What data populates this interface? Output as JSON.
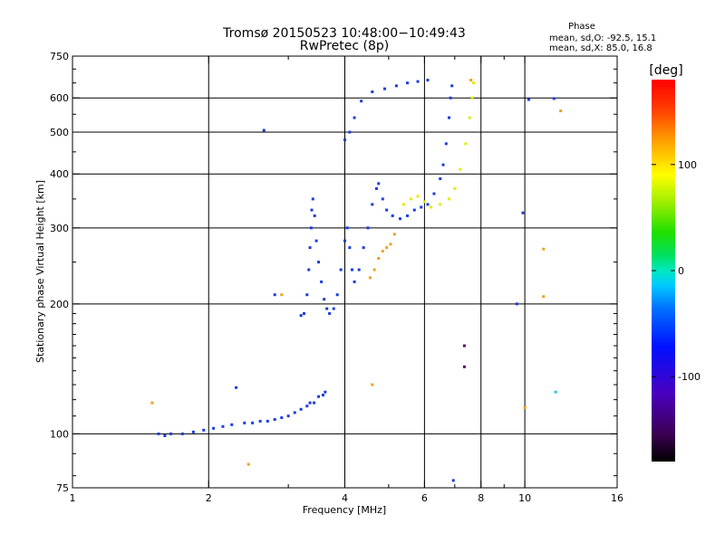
{
  "chart_data": {
    "type": "scatter",
    "title": "Tromsø 20150523 10:48:00−10:49:43",
    "subtitle": "RwPretec (8p)",
    "xlabel": "Frequency [MHz]",
    "ylabel": "Stationary phase Virtual Height [km]",
    "x_scale": "log",
    "y_scale": "log",
    "xlim": [
      1,
      16
    ],
    "ylim": [
      75,
      750
    ],
    "x_ticks": [
      1,
      2,
      4,
      6,
      8,
      10,
      16
    ],
    "x_tick_labels": [
      "1",
      "2",
      "4",
      "6",
      "8",
      "10",
      "16"
    ],
    "x_minor_ticks": [
      3,
      5,
      7,
      9
    ],
    "y_ticks": [
      75,
      100,
      200,
      300,
      400,
      500,
      600,
      750
    ],
    "y_tick_labels": [
      "75",
      "100",
      "200",
      "300",
      "400",
      "500",
      "600",
      "750"
    ],
    "grid": true,
    "stats": {
      "heading": "Phase",
      "line_o": "mean, sd,O: -92.5, 15.1",
      "line_x": "mean, sd,X:  85.0, 16.8"
    },
    "colorbar": {
      "label": "[deg]",
      "range": [
        -180,
        180
      ],
      "ticks": [
        100,
        0,
        -100
      ],
      "tick_labels": [
        "100",
        "0",
        "-100"
      ],
      "colormap": "rainbow"
    },
    "series": [
      {
        "mode": "O",
        "phase_deg": -95,
        "color": "#1a3ce0",
        "points": [
          [
            1.55,
            100
          ],
          [
            1.6,
            99
          ],
          [
            1.65,
            100
          ],
          [
            1.75,
            100
          ],
          [
            1.85,
            101
          ],
          [
            1.95,
            102
          ],
          [
            2.05,
            103
          ],
          [
            2.15,
            104
          ],
          [
            2.25,
            105
          ],
          [
            2.4,
            106
          ],
          [
            2.5,
            106
          ],
          [
            2.6,
            107
          ],
          [
            2.7,
            107
          ],
          [
            2.8,
            108
          ],
          [
            2.9,
            109
          ],
          [
            3.0,
            110
          ],
          [
            3.1,
            112
          ],
          [
            3.2,
            114
          ],
          [
            3.3,
            116
          ],
          [
            3.35,
            118
          ],
          [
            3.42,
            118
          ],
          [
            3.5,
            122
          ],
          [
            3.58,
            123
          ],
          [
            3.62,
            125
          ],
          [
            3.2,
            188
          ],
          [
            3.25,
            190
          ],
          [
            3.3,
            210
          ],
          [
            3.33,
            240
          ],
          [
            3.35,
            270
          ],
          [
            3.37,
            300
          ],
          [
            3.38,
            330
          ],
          [
            3.4,
            350
          ],
          [
            3.43,
            320
          ],
          [
            3.46,
            280
          ],
          [
            3.5,
            250
          ],
          [
            3.55,
            225
          ],
          [
            3.6,
            205
          ],
          [
            3.65,
            195
          ],
          [
            3.7,
            190
          ],
          [
            3.78,
            195
          ],
          [
            3.85,
            210
          ],
          [
            3.92,
            240
          ],
          [
            4.0,
            280
          ],
          [
            4.05,
            300
          ],
          [
            4.1,
            270
          ],
          [
            4.15,
            240
          ],
          [
            4.2,
            225
          ],
          [
            4.3,
            240
          ],
          [
            4.4,
            270
          ],
          [
            4.5,
            300
          ],
          [
            4.6,
            340
          ],
          [
            4.7,
            370
          ],
          [
            4.75,
            380
          ],
          [
            4.85,
            350
          ],
          [
            4.95,
            330
          ],
          [
            5.1,
            320
          ],
          [
            5.3,
            315
          ],
          [
            5.5,
            320
          ],
          [
            5.7,
            330
          ],
          [
            5.9,
            335
          ],
          [
            6.1,
            340
          ],
          [
            6.3,
            360
          ],
          [
            6.5,
            390
          ],
          [
            6.6,
            420
          ],
          [
            6.7,
            470
          ],
          [
            6.8,
            540
          ],
          [
            6.85,
            600
          ],
          [
            6.9,
            640
          ],
          [
            4.0,
            480
          ],
          [
            4.1,
            500
          ],
          [
            4.2,
            540
          ],
          [
            4.35,
            590
          ],
          [
            4.6,
            620
          ],
          [
            4.9,
            630
          ],
          [
            5.2,
            640
          ],
          [
            5.5,
            650
          ],
          [
            5.8,
            655
          ],
          [
            6.1,
            660
          ],
          [
            2.65,
            505
          ],
          [
            2.8,
            210
          ],
          [
            2.3,
            128
          ],
          [
            6.95,
            78
          ],
          [
            9.6,
            200
          ],
          [
            9.9,
            325
          ],
          [
            10.2,
            595
          ],
          [
            11.6,
            598
          ]
        ]
      },
      {
        "mode": "X",
        "phase_deg": 85,
        "color": "#e6ea00",
        "points": [
          [
            5.4,
            340
          ],
          [
            5.6,
            350
          ],
          [
            5.8,
            355
          ],
          [
            6.0,
            345
          ],
          [
            6.2,
            335
          ],
          [
            6.5,
            340
          ],
          [
            6.8,
            350
          ],
          [
            7.0,
            370
          ],
          [
            7.2,
            410
          ],
          [
            7.4,
            470
          ],
          [
            7.55,
            540
          ],
          [
            7.65,
            600
          ],
          [
            7.7,
            650
          ]
        ]
      },
      {
        "mode": "X",
        "phase_deg": 140,
        "color": "#f0a020",
        "points": [
          [
            4.55,
            230
          ],
          [
            4.65,
            240
          ],
          [
            4.75,
            255
          ],
          [
            4.85,
            265
          ],
          [
            4.95,
            270
          ],
          [
            5.05,
            275
          ],
          [
            5.15,
            290
          ],
          [
            1.5,
            118
          ],
          [
            2.45,
            85
          ],
          [
            4.6,
            130
          ],
          [
            11.0,
            268
          ],
          [
            11.0,
            208
          ],
          [
            12.0,
            560
          ],
          [
            10.0,
            115
          ],
          [
            2.9,
            210
          ],
          [
            7.6,
            660
          ]
        ]
      },
      {
        "mode": "X",
        "phase_deg": -150,
        "color": "#600060",
        "points": [
          [
            7.35,
            160
          ],
          [
            7.35,
            143
          ]
        ]
      },
      {
        "mode": "O",
        "phase_deg": -10,
        "color": "#20c8e0",
        "points": [
          [
            11.7,
            125
          ]
        ]
      }
    ]
  }
}
